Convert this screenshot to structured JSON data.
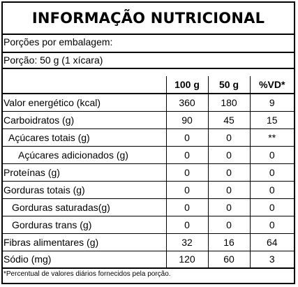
{
  "title": "INFORMAÇÃO NUTRICIONAL",
  "servings_per_package": "Porções por embalagem:",
  "serving_size": "Porção: 50 g (1 xícara)",
  "columns": [
    "100 g",
    "50 g",
    "%VD*"
  ],
  "rows": [
    {
      "name": "Valor energético (kcal)",
      "values": [
        "360",
        "180",
        "9"
      ]
    },
    {
      "name": "Carboidratos (g)",
      "values": [
        "90",
        "45",
        "15"
      ]
    },
    {
      "name": "Açúcares totais (g)",
      "values": [
        "0",
        "0",
        "**"
      ]
    },
    {
      "name": "Açúcares adicionados (g)",
      "values": [
        "0",
        "0",
        "0"
      ]
    },
    {
      "name": "Proteínas (g)",
      "values": [
        "0",
        "0",
        "0"
      ]
    },
    {
      "name": "Gorduras totais (g)",
      "values": [
        "0",
        "0",
        "0"
      ]
    },
    {
      "name": "Gorduras saturadas(g)",
      "values": [
        "0",
        "0",
        "0"
      ]
    },
    {
      "name": "Gorduras trans (g)",
      "values": [
        "0",
        "0",
        "0"
      ]
    },
    {
      "name": "Fibras alimentares (g)",
      "values": [
        "32",
        "16",
        "64"
      ]
    },
    {
      "name": "Sódio (mg)",
      "values": [
        "120",
        "60",
        "3"
      ]
    }
  ],
  "footnote": "*Percentual de valores diários fornecidos pela porção."
}
